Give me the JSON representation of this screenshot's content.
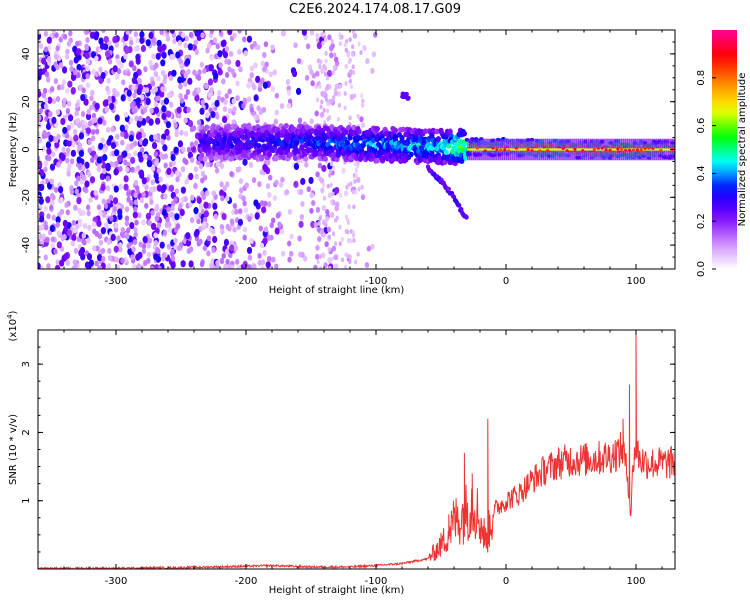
{
  "title": "C2E6.2024.174.08.17.G09",
  "chart_data": [
    {
      "type": "heatmap",
      "xlabel": "Height of straight line (km)",
      "ylabel": "Frequency (Hz)",
      "xlim": [
        -360,
        130
      ],
      "ylim": [
        -50,
        50
      ],
      "xticks": [
        -300,
        -200,
        -100,
        0,
        100
      ],
      "yticks": [
        -40,
        -20,
        0,
        20,
        40
      ],
      "colorbar": {
        "label": "Normalized spectral amplitude",
        "range": [
          0,
          1
        ],
        "ticks": [
          0.0,
          0.2,
          0.4,
          0.6,
          0.8
        ],
        "colors": [
          "#ffffff",
          "#cc88ff",
          "#7700ff",
          "#0000ff",
          "#00ffff",
          "#00ff00",
          "#ffff00",
          "#ff8800",
          "#ff0000",
          "#ff0099"
        ]
      },
      "features": [
        {
          "name": "noise",
          "x_range": [
            -360,
            -130
          ],
          "y_range": [
            -50,
            50
          ],
          "amplitude": 0.25
        },
        {
          "name": "signal_band",
          "x": [
            -230,
            -150,
            -100,
            -50,
            -30,
            0,
            50,
            100,
            130
          ],
          "frequency": [
            3,
            3,
            2,
            1,
            1,
            1,
            0,
            0,
            0
          ],
          "amplitude": [
            0.3,
            0.35,
            0.4,
            0.45,
            0.6,
            0.75,
            0.85,
            0.8,
            0.7
          ]
        },
        {
          "name": "upper_branch",
          "x": [
            -80,
            -75
          ],
          "frequency": [
            23,
            22
          ],
          "amplitude": 0.25
        },
        {
          "name": "lower_branch",
          "x": [
            -60,
            -50,
            -40,
            -35,
            -30
          ],
          "frequency": [
            -8,
            -13,
            -20,
            -25,
            -29
          ],
          "amplitude": 0.25
        }
      ]
    },
    {
      "type": "line",
      "xlabel": "Height of straight line (km)",
      "ylabel": "SNR (10 * v/v)",
      "yscale_label": "(x10^4)",
      "xlim": [
        -360,
        130
      ],
      "ylim": [
        0,
        3.5
      ],
      "xticks": [
        -300,
        -200,
        -100,
        0,
        100
      ],
      "yticks": [
        1,
        2,
        3
      ],
      "series": [
        {
          "color": "#ee3333",
          "x": [
            -360,
            -300,
            -250,
            -200,
            -180,
            -150,
            -120,
            -100,
            -80,
            -60,
            -50,
            -45,
            -40,
            -35,
            -30,
            -25,
            -20,
            -15,
            -10,
            0,
            10,
            20,
            30,
            40,
            50,
            60,
            70,
            80,
            85,
            90,
            94,
            96,
            98,
            100,
            103,
            110,
            120,
            130
          ],
          "values": [
            0.01,
            0.01,
            0.02,
            0.04,
            0.05,
            0.03,
            0.03,
            0.05,
            0.08,
            0.15,
            0.35,
            0.5,
            0.7,
            0.75,
            0.85,
            1.0,
            0.7,
            0.4,
            0.85,
            1.0,
            1.1,
            1.3,
            1.45,
            1.55,
            1.6,
            1.6,
            1.62,
            1.65,
            1.7,
            1.75,
            1.3,
            0.8,
            1.6,
            1.8,
            1.6,
            1.55,
            1.55,
            1.55
          ],
          "spikes": [
            {
              "x": -44,
              "value": 0.8
            },
            {
              "x": -32,
              "value": 1.7
            },
            {
              "x": -26,
              "value": 1.4
            },
            {
              "x": -14,
              "value": 2.2
            },
            {
              "x": 90,
              "value": 2.2
            },
            {
              "x": 95,
              "value": 2.7
            },
            {
              "x": 100,
              "value": 3.5
            }
          ]
        }
      ]
    }
  ]
}
